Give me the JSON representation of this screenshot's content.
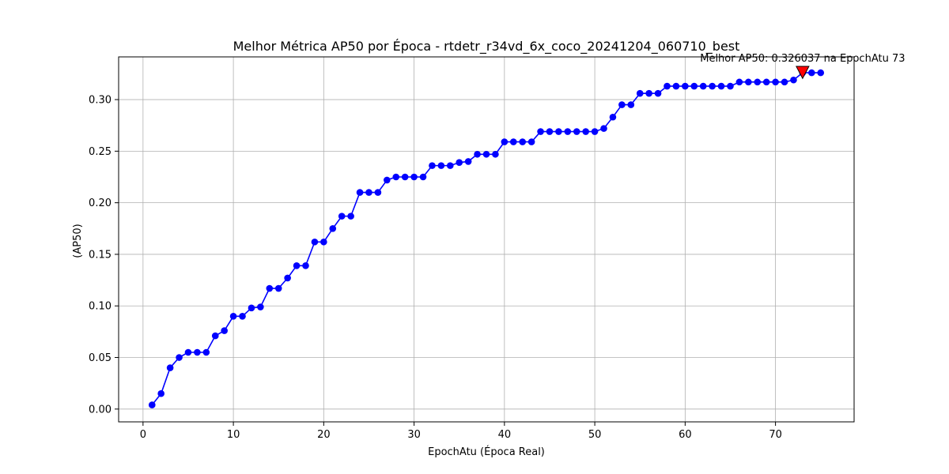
{
  "chart_data": {
    "type": "line",
    "title": "Melhor Métrica AP50 por Época - rtdetr_r34vd_6x_coco_20241204_060710_best",
    "xlabel": "EpochAtu (Época Real)",
    "ylabel": "(AP50)",
    "xlim": [
      -2.7,
      78.7
    ],
    "ylim": [
      -0.0124,
      0.3414
    ],
    "x_ticks": [
      0,
      10,
      20,
      30,
      40,
      50,
      60,
      70
    ],
    "y_ticks": [
      0.0,
      0.05,
      0.1,
      0.15,
      0.2,
      0.25,
      0.3
    ],
    "y_tick_labels": [
      "0.00",
      "0.05",
      "0.10",
      "0.15",
      "0.20",
      "0.25",
      "0.30"
    ],
    "grid": true,
    "series": [
      {
        "color": "#0000ff",
        "x": [
          1,
          2,
          3,
          4,
          5,
          6,
          7,
          8,
          9,
          10,
          11,
          12,
          13,
          14,
          15,
          16,
          17,
          18,
          19,
          20,
          21,
          22,
          23,
          24,
          25,
          26,
          27,
          28,
          29,
          30,
          31,
          32,
          33,
          34,
          35,
          36,
          37,
          38,
          39,
          40,
          41,
          42,
          43,
          44,
          45,
          46,
          47,
          48,
          49,
          50,
          51,
          52,
          53,
          54,
          55,
          56,
          57,
          58,
          59,
          60,
          61,
          62,
          63,
          64,
          65,
          66,
          67,
          68,
          69,
          70,
          71,
          72,
          73,
          74,
          75
        ],
        "y": [
          0.004,
          0.015,
          0.04,
          0.05,
          0.055,
          0.055,
          0.055,
          0.071,
          0.076,
          0.09,
          0.09,
          0.098,
          0.099,
          0.117,
          0.117,
          0.127,
          0.139,
          0.139,
          0.162,
          0.162,
          0.175,
          0.187,
          0.187,
          0.21,
          0.21,
          0.21,
          0.222,
          0.225,
          0.225,
          0.225,
          0.225,
          0.236,
          0.236,
          0.236,
          0.239,
          0.24,
          0.247,
          0.247,
          0.247,
          0.259,
          0.259,
          0.259,
          0.259,
          0.269,
          0.269,
          0.269,
          0.269,
          0.269,
          0.269,
          0.269,
          0.272,
          0.283,
          0.295,
          0.295,
          0.306,
          0.306,
          0.306,
          0.313,
          0.313,
          0.313,
          0.313,
          0.313,
          0.313,
          0.313,
          0.313,
          0.317,
          0.317,
          0.317,
          0.317,
          0.317,
          0.317,
          0.319,
          0.326,
          0.326,
          0.326
        ]
      }
    ],
    "best_point": {
      "x": 73,
      "y": 0.326037,
      "color": "#ff0000",
      "label": "Melhor AP50: 0.326037 na EpochAtu 73"
    }
  }
}
